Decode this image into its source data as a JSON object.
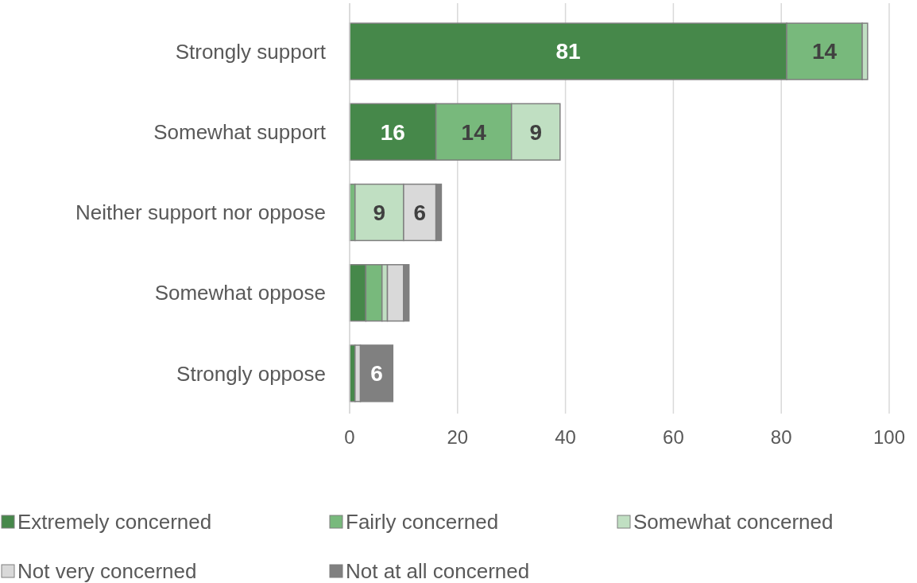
{
  "chart_data": {
    "type": "bar",
    "orientation": "horizontal",
    "stacked": true,
    "categories": [
      "Strongly support",
      "Somewhat support",
      "Neither support nor oppose",
      "Somewhat oppose",
      "Strongly oppose"
    ],
    "series": [
      {
        "name": "Extremely concerned",
        "color": "#46884a",
        "values": [
          81,
          16,
          0,
          3,
          1
        ],
        "value_labels": [
          "81",
          "16",
          null,
          null,
          null
        ]
      },
      {
        "name": "Fairly concerned",
        "color": "#78b97c",
        "values": [
          14,
          14,
          1,
          3,
          0
        ],
        "value_labels": [
          "14",
          "14",
          null,
          null,
          null
        ]
      },
      {
        "name": "Somewhat concerned",
        "color": "#c0dfc2",
        "values": [
          1,
          9,
          9,
          1,
          0
        ],
        "value_labels": [
          null,
          "9",
          "9",
          null,
          null
        ]
      },
      {
        "name": "Not very concerned",
        "color": "#d9d9d9",
        "values": [
          0,
          0,
          6,
          3,
          1
        ],
        "value_labels": [
          null,
          null,
          "6",
          null,
          null
        ]
      },
      {
        "name": "Not at all concerned",
        "color": "#808080",
        "values": [
          0,
          0,
          1,
          1,
          6
        ],
        "value_labels": [
          null,
          null,
          null,
          null,
          "6"
        ]
      }
    ],
    "xlim": [
      0,
      100
    ],
    "xticks": [
      0,
      20,
      40,
      60,
      80,
      100
    ],
    "grid": "x",
    "legend": "bottom"
  }
}
